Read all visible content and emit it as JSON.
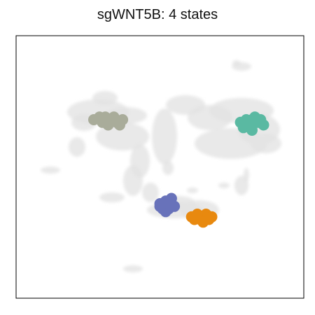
{
  "chart_data": {
    "type": "scatter",
    "title": "sgWNT5B: 4 states",
    "xlabel": "",
    "ylabel": "",
    "axes_ticks": false,
    "grid": false,
    "legend": "none",
    "background_color": "#e3e3e3",
    "series": [
      {
        "color": "#a9ac9a",
        "points": [
          [
            0.27,
            0.68
          ],
          [
            0.29,
            0.69
          ],
          [
            0.31,
            0.69
          ],
          [
            0.33,
            0.68
          ],
          [
            0.35,
            0.67
          ],
          [
            0.37,
            0.68
          ],
          [
            0.3,
            0.67
          ],
          [
            0.34,
            0.69
          ],
          [
            0.32,
            0.66
          ],
          [
            0.36,
            0.66
          ]
        ]
      },
      {
        "color": "#5ab9a2",
        "points": [
          [
            0.78,
            0.67
          ],
          [
            0.8,
            0.68
          ],
          [
            0.82,
            0.68
          ],
          [
            0.84,
            0.67
          ],
          [
            0.86,
            0.66
          ],
          [
            0.81,
            0.66
          ],
          [
            0.83,
            0.69
          ],
          [
            0.79,
            0.65
          ],
          [
            0.85,
            0.68
          ],
          [
            0.82,
            0.64
          ]
        ]
      },
      {
        "color": "#6872ba",
        "points": [
          [
            0.5,
            0.36
          ],
          [
            0.52,
            0.37
          ],
          [
            0.54,
            0.36
          ],
          [
            0.53,
            0.34
          ],
          [
            0.51,
            0.34
          ],
          [
            0.55,
            0.35
          ],
          [
            0.52,
            0.33
          ],
          [
            0.54,
            0.38
          ],
          [
            0.5,
            0.35
          ],
          [
            0.53,
            0.36
          ]
        ]
      },
      {
        "color": "#e8890f",
        "points": [
          [
            0.61,
            0.31
          ],
          [
            0.63,
            0.31
          ],
          [
            0.65,
            0.31
          ],
          [
            0.67,
            0.3
          ],
          [
            0.64,
            0.3
          ],
          [
            0.62,
            0.3
          ],
          [
            0.66,
            0.32
          ],
          [
            0.63,
            0.32
          ],
          [
            0.65,
            0.29
          ],
          [
            0.68,
            0.31
          ]
        ]
      }
    ]
  }
}
